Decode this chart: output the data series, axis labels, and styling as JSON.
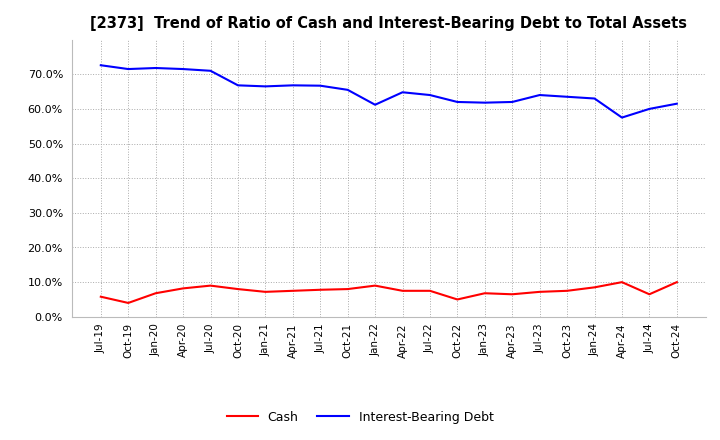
{
  "title": "[2373]  Trend of Ratio of Cash and Interest-Bearing Debt to Total Assets",
  "title_fontsize": 10.5,
  "background_color": "#ffffff",
  "plot_background_color": "#ffffff",
  "grid_color": "#aaaaaa",
  "x_labels": [
    "Jul-19",
    "Oct-19",
    "Jan-20",
    "Apr-20",
    "Jul-20",
    "Oct-20",
    "Jan-21",
    "Apr-21",
    "Jul-21",
    "Oct-21",
    "Jan-22",
    "Apr-22",
    "Jul-22",
    "Oct-22",
    "Jan-23",
    "Apr-23",
    "Jul-23",
    "Oct-23",
    "Jan-24",
    "Apr-24",
    "Jul-24",
    "Oct-24"
  ],
  "cash": [
    0.058,
    0.04,
    0.068,
    0.082,
    0.09,
    0.08,
    0.072,
    0.075,
    0.078,
    0.08,
    0.09,
    0.075,
    0.075,
    0.05,
    0.068,
    0.065,
    0.072,
    0.075,
    0.085,
    0.1,
    0.065,
    0.1
  ],
  "interest_bearing_debt": [
    0.726,
    0.715,
    0.718,
    0.715,
    0.71,
    0.668,
    0.665,
    0.668,
    0.667,
    0.655,
    0.612,
    0.648,
    0.64,
    0.62,
    0.618,
    0.62,
    0.64,
    0.635,
    0.63,
    0.575,
    0.6,
    0.615
  ],
  "cash_color": "#ff0000",
  "debt_color": "#0000ff",
  "cash_label": "Cash",
  "debt_label": "Interest-Bearing Debt",
  "ylim": [
    0.0,
    0.8
  ],
  "yticks": [
    0.0,
    0.1,
    0.2,
    0.3,
    0.4,
    0.5,
    0.6,
    0.7
  ],
  "linewidth": 1.5
}
